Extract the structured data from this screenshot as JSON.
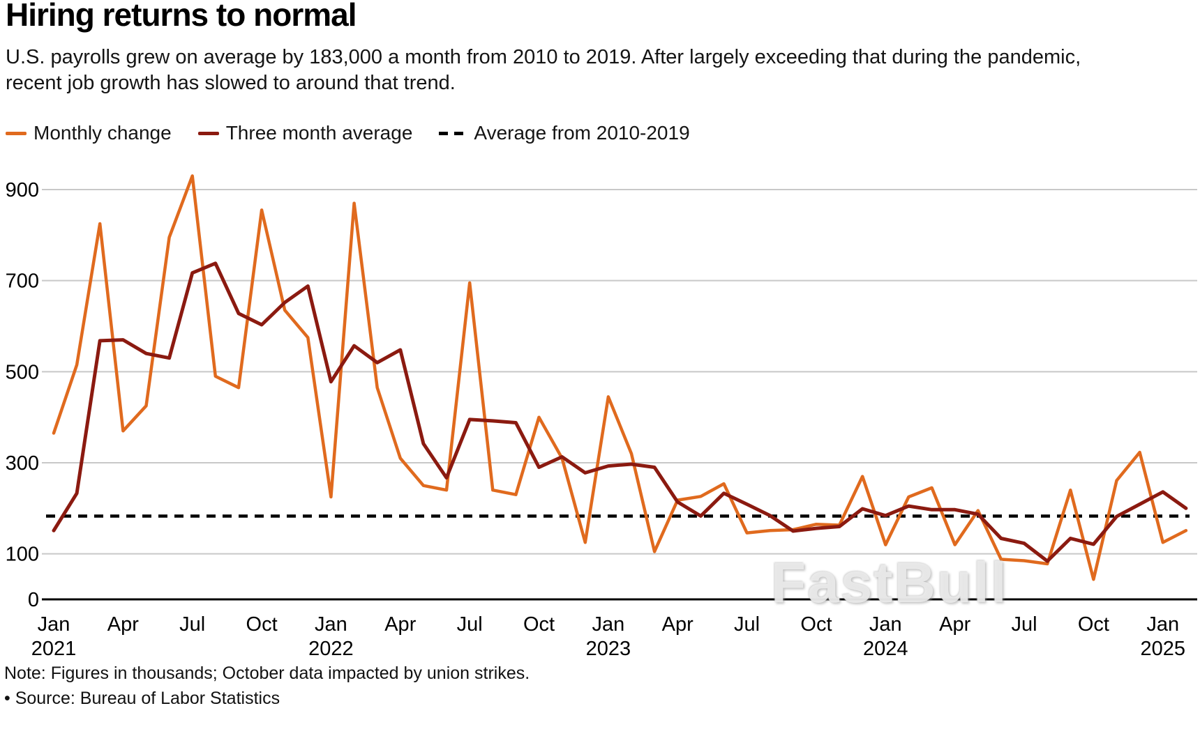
{
  "header": {
    "title": "Hiring returns to normal",
    "subtitle_lines": [
      "U.S. payrolls grew on average by 183,000 a month from 2010 to 2019. After largely exceeding that during the pandemic,",
      "recent job growth has slowed to around that trend."
    ]
  },
  "legend": {
    "items": [
      {
        "label": "Monthly change",
        "color": "#E06A1E",
        "style": "solid"
      },
      {
        "label": "Three month average",
        "color": "#8B1A10",
        "style": "solid"
      },
      {
        "label": "Average from 2010-2019",
        "color": "#000000",
        "style": "dashed"
      }
    ]
  },
  "footer": {
    "note": "Note: Figures in thousands; October data impacted by union strikes.",
    "source": "• Source: Bureau of Labor Statistics"
  },
  "watermark": "FastBull",
  "colors": {
    "monthly": "#E06A1E",
    "three_month": "#8B1A10",
    "average_line": "#000000",
    "gridline": "#c8c8c8",
    "axis": "#000000"
  },
  "chart_data": {
    "type": "line",
    "title": "Hiring returns to normal",
    "xlabel": "",
    "ylabel": "",
    "units": "thousands of jobs",
    "ylim": [
      0,
      950
    ],
    "y_ticks": [
      0,
      100,
      300,
      500,
      700,
      900
    ],
    "grid": true,
    "legend_position": "top",
    "average_2010_2019": 183,
    "x": [
      "Jan 2021",
      "Feb 2021",
      "Mar 2021",
      "Apr 2021",
      "May 2021",
      "Jun 2021",
      "Jul 2021",
      "Aug 2021",
      "Sep 2021",
      "Oct 2021",
      "Nov 2021",
      "Dec 2021",
      "Jan 2022",
      "Feb 2022",
      "Mar 2022",
      "Apr 2022",
      "May 2022",
      "Jun 2022",
      "Jul 2022",
      "Aug 2022",
      "Sep 2022",
      "Oct 2022",
      "Nov 2022",
      "Dec 2022",
      "Jan 2023",
      "Feb 2023",
      "Mar 2023",
      "Apr 2023",
      "May 2023",
      "Jun 2023",
      "Jul 2023",
      "Aug 2023",
      "Sep 2023",
      "Oct 2023",
      "Nov 2023",
      "Dec 2023",
      "Jan 2024",
      "Feb 2024",
      "Mar 2024",
      "Apr 2024",
      "May 2024",
      "Jun 2024",
      "Jul 2024",
      "Aug 2024",
      "Sep 2024",
      "Oct 2024",
      "Nov 2024",
      "Dec 2024",
      "Jan 2025",
      "Feb 2025"
    ],
    "x_tick_labels": [
      {
        "index": 0,
        "month": "Jan",
        "year": "2021"
      },
      {
        "index": 3,
        "month": "Apr",
        "year": ""
      },
      {
        "index": 6,
        "month": "Jul",
        "year": ""
      },
      {
        "index": 9,
        "month": "Oct",
        "year": ""
      },
      {
        "index": 12,
        "month": "Jan",
        "year": "2022"
      },
      {
        "index": 15,
        "month": "Apr",
        "year": ""
      },
      {
        "index": 18,
        "month": "Jul",
        "year": ""
      },
      {
        "index": 21,
        "month": "Oct",
        "year": ""
      },
      {
        "index": 24,
        "month": "Jan",
        "year": "2023"
      },
      {
        "index": 27,
        "month": "Apr",
        "year": ""
      },
      {
        "index": 30,
        "month": "Jul",
        "year": ""
      },
      {
        "index": 33,
        "month": "Oct",
        "year": ""
      },
      {
        "index": 36,
        "month": "Jan",
        "year": "2024"
      },
      {
        "index": 39,
        "month": "Apr",
        "year": ""
      },
      {
        "index": 42,
        "month": "Jul",
        "year": ""
      },
      {
        "index": 45,
        "month": "Oct",
        "year": ""
      },
      {
        "index": 48,
        "month": "Jan",
        "year": "2025"
      }
    ],
    "series": [
      {
        "name": "Monthly change",
        "color": "#E06A1E",
        "values": [
          365,
          515,
          825,
          370,
          425,
          795,
          930,
          490,
          465,
          855,
          635,
          575,
          225,
          870,
          465,
          310,
          250,
          240,
          695,
          240,
          230,
          400,
          310,
          125,
          445,
          320,
          105,
          218,
          226,
          254,
          146,
          151,
          153,
          165,
          163,
          270,
          120,
          225,
          245,
          120,
          195,
          88,
          85,
          78,
          240,
          44,
          261,
          323,
          125,
          151
        ]
      },
      {
        "name": "Three month average",
        "color": "#8B1A10",
        "values": [
          151,
          233,
          568,
          570,
          540,
          530,
          717,
          738,
          628,
          603,
          652,
          688,
          478,
          557,
          520,
          548,
          342,
          267,
          395,
          392,
          388,
          290,
          313,
          278,
          293,
          297,
          290,
          214,
          183,
          233,
          209,
          184,
          150,
          156,
          160,
          199,
          184,
          205,
          197,
          197,
          187,
          134,
          123,
          84,
          134,
          121,
          182,
          209,
          236,
          200
        ]
      }
    ]
  }
}
